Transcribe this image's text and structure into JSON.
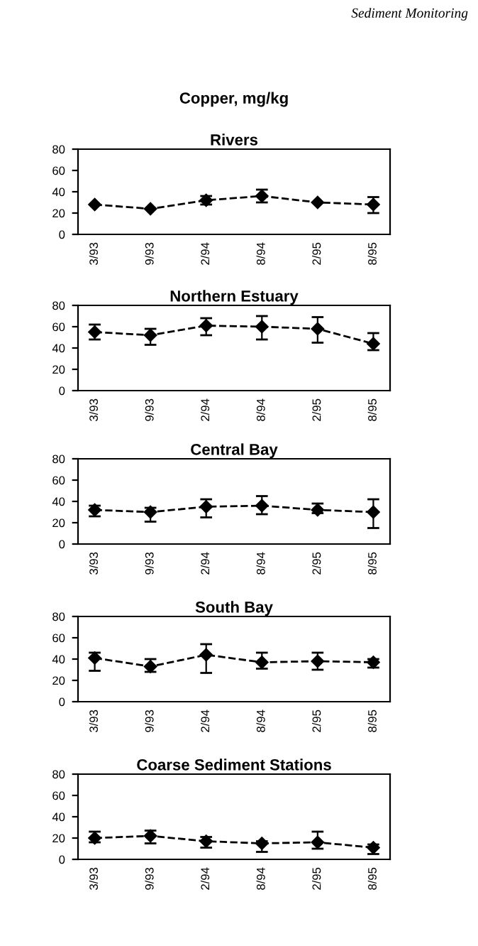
{
  "chart_data": [
    {
      "type": "line",
      "title": "Rivers",
      "annotations": [
        "Sediment Monitoring",
        "Copper, mg/kg"
      ],
      "categories": [
        "3/93",
        "9/93",
        "2/94",
        "8/94",
        "2/95",
        "8/95"
      ],
      "series": [
        {
          "color": "#000000",
          "values": [
            28,
            24,
            32,
            36,
            30,
            28
          ],
          "errors": [
            null,
            null,
            [
              28,
              36
            ],
            [
              30,
              42
            ],
            null,
            [
              20,
              35
            ]
          ]
        }
      ],
      "ylim": [
        0,
        80
      ],
      "yticks": [
        0,
        20,
        40,
        60,
        80
      ],
      "marker": "diamond",
      "line_style": "dashed",
      "grid": false,
      "legend": false
    },
    {
      "type": "line",
      "title": "Northern Estuary",
      "categories": [
        "3/93",
        "9/93",
        "2/94",
        "8/94",
        "2/95",
        "8/95"
      ],
      "series": [
        {
          "color": "#000000",
          "values": [
            55,
            52,
            61,
            60,
            58,
            44
          ],
          "errors": [
            [
              48,
              62
            ],
            [
              43,
              58
            ],
            [
              52,
              68
            ],
            [
              48,
              70
            ],
            [
              45,
              69
            ],
            [
              38,
              54
            ]
          ]
        }
      ],
      "ylim": [
        0,
        80
      ],
      "yticks": [
        0,
        20,
        40,
        60,
        80
      ],
      "marker": "diamond",
      "line_style": "dashed",
      "grid": false,
      "legend": false
    },
    {
      "type": "line",
      "title": "Central Bay",
      "categories": [
        "3/93",
        "9/93",
        "2/94",
        "8/94",
        "2/95",
        "8/95"
      ],
      "series": [
        {
          "color": "#000000",
          "values": [
            32,
            30,
            35,
            36,
            32,
            30
          ],
          "errors": [
            [
              26,
              36
            ],
            [
              21,
              34
            ],
            [
              25,
              42
            ],
            [
              28,
              45
            ],
            [
              29,
              38
            ],
            [
              15,
              42
            ]
          ]
        }
      ],
      "ylim": [
        0,
        80
      ],
      "yticks": [
        0,
        20,
        40,
        60,
        80
      ],
      "marker": "diamond",
      "line_style": "dashed",
      "grid": false,
      "legend": false
    },
    {
      "type": "line",
      "title": "South Bay",
      "categories": [
        "3/93",
        "9/93",
        "2/94",
        "8/94",
        "2/95",
        "8/95"
      ],
      "series": [
        {
          "color": "#000000",
          "values": [
            41,
            33,
            44,
            37,
            38,
            37
          ],
          "errors": [
            [
              29,
              46
            ],
            [
              28,
              40
            ],
            [
              27,
              54
            ],
            [
              31,
              46
            ],
            [
              30,
              46
            ],
            [
              32,
              40
            ]
          ]
        }
      ],
      "ylim": [
        0,
        80
      ],
      "yticks": [
        0,
        20,
        40,
        60,
        80
      ],
      "marker": "diamond",
      "line_style": "dashed",
      "grid": false,
      "legend": false
    },
    {
      "type": "line",
      "title": "Coarse Sediment Stations",
      "categories": [
        "3/93",
        "9/93",
        "2/94",
        "8/94",
        "2/95",
        "8/95"
      ],
      "series": [
        {
          "color": "#000000",
          "values": [
            20,
            22,
            17,
            15,
            16,
            11
          ],
          "errors": [
            [
              16,
              26
            ],
            [
              15,
              27
            ],
            [
              11,
              21
            ],
            [
              7,
              17
            ],
            [
              10,
              26
            ],
            [
              5,
              14
            ]
          ]
        }
      ],
      "ylim": [
        0,
        80
      ],
      "yticks": [
        0,
        20,
        40,
        60,
        80
      ],
      "marker": "diamond",
      "line_style": "dashed",
      "grid": false,
      "legend": false
    }
  ]
}
